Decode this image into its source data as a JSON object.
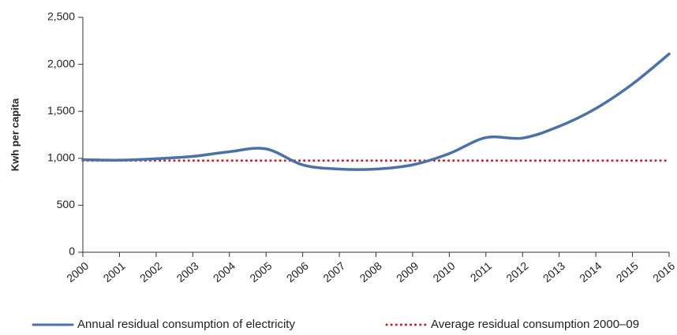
{
  "chart_data": {
    "type": "line",
    "y_label": "Kwh per capita",
    "x": [
      2000,
      2001,
      2002,
      2003,
      2004,
      2005,
      2006,
      2007,
      2008,
      2009,
      2010,
      2011,
      2012,
      2013,
      2014,
      2015,
      2016
    ],
    "xlim": [
      2000,
      2016
    ],
    "xticks": [
      2000,
      2001,
      2002,
      2003,
      2004,
      2005,
      2006,
      2007,
      2008,
      2009,
      2010,
      2011,
      2012,
      2013,
      2014,
      2015,
      2016
    ],
    "ylim": [
      0,
      2500
    ],
    "yticks": [
      0,
      500,
      {
        "value": 1000,
        "label": "1,000"
      },
      {
        "value": 1500,
        "label": "1,500"
      },
      {
        "value": 2000,
        "label": "2,000"
      },
      {
        "value": 2500,
        "label": "2,500"
      }
    ],
    "series": [
      {
        "name": "Annual residual consumption of electricity",
        "color": "#4a72aa",
        "style": "solid",
        "values": [
          985,
          980,
          995,
          1020,
          1070,
          1100,
          930,
          885,
          885,
          930,
          1050,
          1220,
          1215,
          1340,
          1530,
          1790,
          2110
        ]
      },
      {
        "name": "Average residual consumption 2000–09",
        "color": "#c0252a",
        "style": "dotted",
        "values": [
          975,
          975,
          975,
          975,
          975,
          975,
          975,
          975,
          975,
          975,
          975,
          975,
          975,
          975,
          975,
          975,
          975
        ]
      }
    ]
  }
}
